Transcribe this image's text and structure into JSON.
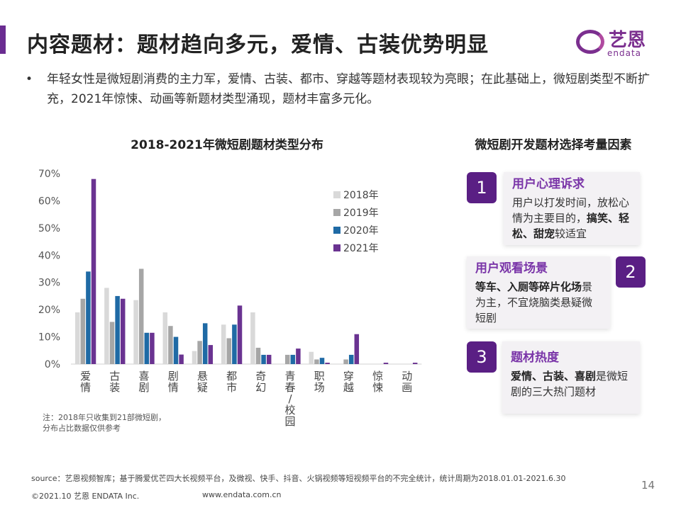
{
  "header": {
    "title": "内容题材：题材趋向多元，爱情、古装优势明显",
    "logo_cn": "艺恩",
    "logo_en": "endata"
  },
  "bullet": "年轻女性是微短剧消费的主力军，爱情、古装、都市、穿越等题材表现较为亮眼；在此基础上，微短剧类型不断扩充，2021年惊悚、动画等新题材类型涌现，题材丰富多元化。",
  "chart_data": {
    "type": "bar",
    "title": "2018-2021年微短剧题材类型分布",
    "categories": [
      "爱情",
      "古装",
      "喜剧",
      "剧情",
      "悬疑",
      "都市",
      "奇幻",
      "青春/校园",
      "职场",
      "穿越",
      "惊悚",
      "动画"
    ],
    "series": [
      {
        "name": "2018年",
        "color": "#d9d9d9",
        "values": [
          19,
          28,
          23.5,
          19,
          4.8,
          14.5,
          19,
          0,
          4.5,
          0,
          0,
          0
        ]
      },
      {
        "name": "2019年",
        "color": "#a6a6a6",
        "values": [
          24,
          15.5,
          35,
          14,
          8.5,
          9.5,
          6,
          3.4,
          1.7,
          1.7,
          0,
          0
        ]
      },
      {
        "name": "2020年",
        "color": "#1f6aa5",
        "values": [
          34,
          25,
          11.5,
          10,
          15,
          14.5,
          3.4,
          3.4,
          2.3,
          3.4,
          0,
          0
        ]
      },
      {
        "name": "2021年",
        "color": "#6a3391",
        "values": [
          68,
          24,
          11.5,
          3.5,
          7,
          21.5,
          3.4,
          5.7,
          0.5,
          11,
          0.5,
          0.5
        ]
      }
    ],
    "yticks": [
      "0%",
      "10%",
      "20%",
      "30%",
      "40%",
      "50%",
      "60%",
      "70%"
    ],
    "ylim": [
      0,
      70
    ],
    "legend": "top-right",
    "grid": false
  },
  "note": [
    "注：2018年只收集到21部微短剧，",
    "分布占比数据仅供参考"
  ],
  "right": {
    "title": "微短剧开发题材选择考量因素",
    "cards": [
      {
        "num": "1",
        "heading": "用户心理诉求",
        "parts": [
          {
            "t": "用户以打发时间，放松心情为主要目的，",
            "b": false
          },
          {
            "t": "搞笑、轻松、甜宠",
            "b": true
          },
          {
            "t": "较适宜",
            "b": false
          }
        ]
      },
      {
        "num": "2",
        "heading": "用户观看场景",
        "parts": [
          {
            "t": "等车、入厕等碎片化场",
            "b": true
          },
          {
            "t": "景为主，不宜烧脑类悬疑微短剧",
            "b": false
          }
        ]
      },
      {
        "num": "3",
        "heading": "题材热度",
        "parts": [
          {
            "t": "爱情、古装、喜剧",
            "b": true
          },
          {
            "t": "是微短剧的三大热门题材",
            "b": false
          }
        ]
      }
    ]
  },
  "footer": {
    "source": "source：艺恩视频智库；基于腾爱优芒四大长视频平台，及微视、快手、抖音、火锅视频等短视频平台的不完全统计，统计周期为2018.01.01-2021.6.30",
    "copyright": "©2021.10 艺恩 ENDATA Inc.",
    "url": "www.endata.com.cn",
    "page": "14"
  }
}
